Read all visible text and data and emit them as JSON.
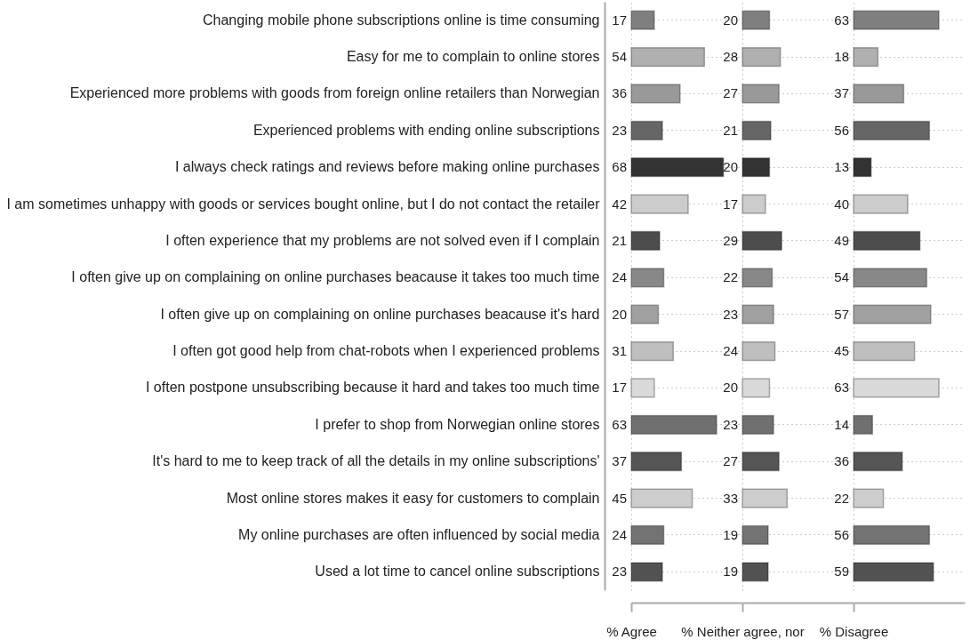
{
  "chart_data": [
    {
      "type": "bar",
      "orientation": "horizontal",
      "tick_labels": "y",
      "grid": true,
      "data_labels": true,
      "xlabel": "% Agree",
      "xlim": [
        0,
        82
      ],
      "categories": [
        "Changing mobile phone subscriptions online is time consuming",
        "Easy for me to complain to online stores",
        "Experienced more problems with goods from  foreign online retailers than Norwegian",
        "Experienced problems with ending online subscriptions",
        "I always check ratings and reviews before making online purchases",
        "I am sometimes unhappy with goods or services bought online, but I do not contact the retailer",
        "I often experience that my problems are not solved even if I complain",
        "I often give up on complaining on online purchases beacause it takes too much time",
        "I often give up on complaining on online purchases beacause it's hard",
        "I often got good help from chat-robots when I experienced problems",
        "I often postpone unsubscribing because it hard and takes too much time",
        "I prefer to shop from Norwegian online stores",
        "It's hard to me to keep track of all the details in my online subscriptions'",
        "Most online stores makes it easy for customers to complain",
        "My online purchases are often influenced by social media",
        "Used a lot time to cancel online subscriptions"
      ],
      "values": [
        17,
        54,
        36,
        23,
        68,
        42,
        21,
        24,
        20,
        31,
        17,
        63,
        37,
        45,
        24,
        23
      ],
      "colors": [
        "#7f7f7f",
        "#b0b0b0",
        "#999999",
        "#666666",
        "#333333",
        "#cccccc",
        "#4d4d4d",
        "#888888",
        "#a0a0a0",
        "#bfbfbf",
        "#d9d9d9",
        "#707070",
        "#555555",
        "#cdcdcd",
        "#737373",
        "#525252"
      ]
    },
    {
      "type": "bar",
      "orientation": "horizontal",
      "tick_labels": false,
      "grid": true,
      "data_labels": true,
      "xlabel": "% Neither agree, nor",
      "xlim": [
        0,
        82
      ],
      "categories": [
        null,
        null,
        null,
        null,
        null,
        null,
        null,
        null,
        null,
        null,
        null,
        null,
        null,
        null,
        null,
        null
      ],
      "values": [
        20,
        28,
        27,
        21,
        20,
        17,
        29,
        22,
        23,
        24,
        20,
        23,
        27,
        33,
        19,
        19
      ],
      "colors": [
        "#7f7f7f",
        "#b0b0b0",
        "#999999",
        "#666666",
        "#333333",
        "#cccccc",
        "#4d4d4d",
        "#888888",
        "#a0a0a0",
        "#bfbfbf",
        "#d9d9d9",
        "#707070",
        "#555555",
        "#cdcdcd",
        "#737373",
        "#525252"
      ]
    },
    {
      "type": "bar",
      "orientation": "horizontal",
      "tick_labels": false,
      "grid": true,
      "data_labels": true,
      "xlabel": "% Disagree",
      "xlim": [
        0,
        82
      ],
      "categories": [
        null,
        null,
        null,
        null,
        null,
        null,
        null,
        null,
        null,
        null,
        null,
        null,
        null,
        null,
        null,
        null
      ],
      "values": [
        63,
        18,
        37,
        56,
        13,
        40,
        49,
        54,
        57,
        45,
        63,
        14,
        36,
        22,
        56,
        59
      ],
      "colors": [
        "#7f7f7f",
        "#b0b0b0",
        "#999999",
        "#666666",
        "#333333",
        "#cccccc",
        "#4d4d4d",
        "#888888",
        "#a0a0a0",
        "#bfbfbf",
        "#d9d9d9",
        "#707070",
        "#555555",
        "#cdcdcd",
        "#737373",
        "#525252"
      ]
    }
  ]
}
